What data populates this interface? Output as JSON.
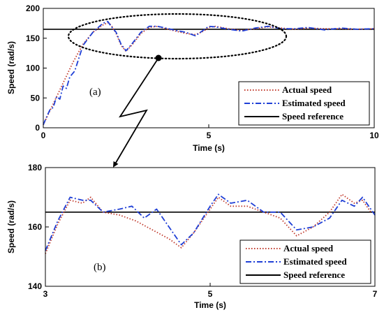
{
  "chart_data": [
    {
      "type": "line",
      "panel_label": "(a)",
      "xlabel": "Time (s)",
      "ylabel": "Speed (rad/s)",
      "xlim": [
        0,
        10
      ],
      "ylim": [
        0,
        200
      ],
      "xticks": [
        "0",
        "5",
        "10"
      ],
      "yticks": [
        "0",
        "50",
        "100",
        "150",
        "200"
      ],
      "grid": false,
      "legend_position": "bottom-right",
      "series": [
        {
          "name": "Actual speed",
          "color": "#c0392b",
          "style": "dotted",
          "x": [
            0,
            0.3,
            0.6,
            0.9,
            1.2,
            1.5,
            1.8,
            1.95,
            2.05,
            2.2,
            2.35,
            2.5,
            2.7,
            2.95,
            3.2,
            3.45,
            3.7,
            4.0,
            4.3,
            4.6,
            4.85,
            5.0,
            5.2,
            5.6,
            6.0,
            6.4,
            6.8,
            7.2,
            7.6,
            8.0,
            8.5,
            9.0,
            9.5,
            10.0
          ],
          "y": [
            5,
            40,
            75,
            110,
            140,
            160,
            172,
            176,
            172,
            158,
            138,
            128,
            140,
            158,
            168,
            170,
            166,
            162,
            158,
            156,
            162,
            168,
            170,
            166,
            163,
            166,
            169,
            167,
            165,
            167,
            166,
            166,
            165,
            166
          ]
        },
        {
          "name": "Estimated speed",
          "color": "#1f3fd6",
          "style": "dashdot",
          "x": [
            0,
            0.1,
            0.2,
            0.3,
            0.4,
            0.5,
            0.6,
            0.7,
            0.8,
            0.95,
            1.2,
            1.5,
            1.8,
            1.95,
            2.05,
            2.2,
            2.35,
            2.5,
            2.7,
            2.95,
            3.2,
            3.45,
            3.7,
            4.0,
            4.3,
            4.6,
            4.85,
            5.0,
            5.2,
            5.6,
            6.0,
            6.4,
            6.8,
            7.2,
            7.6,
            8.0,
            8.5,
            9.0,
            9.5,
            10.0
          ],
          "y": [
            5,
            18,
            30,
            34,
            52,
            48,
            70,
            66,
            85,
            95,
            138,
            160,
            175,
            178,
            170,
            160,
            140,
            129,
            142,
            160,
            170,
            170,
            167,
            163,
            160,
            154,
            164,
            170,
            169,
            165,
            162,
            167,
            170,
            166,
            166,
            168,
            164,
            167,
            165,
            166
          ]
        },
        {
          "name": "Speed reference",
          "color": "#000000",
          "style": "solid",
          "x": [
            0,
            10
          ],
          "y": [
            165,
            165
          ]
        }
      ]
    },
    {
      "type": "line",
      "panel_label": "(b)",
      "xlabel": "Time (s)",
      "ylabel": "Speed (rad/s)",
      "xlim": [
        3,
        7
      ],
      "ylim": [
        140,
        180
      ],
      "xticks": [
        "3",
        "5",
        "7"
      ],
      "yticks": [
        "140",
        "160",
        "180"
      ],
      "grid": false,
      "legend_position": "bottom-right",
      "series": [
        {
          "name": "Actual speed",
          "color": "#c0392b",
          "style": "dotted",
          "x": [
            3.0,
            3.15,
            3.3,
            3.45,
            3.55,
            3.7,
            3.9,
            4.1,
            4.3,
            4.5,
            4.65,
            4.8,
            5.0,
            5.1,
            5.25,
            5.45,
            5.65,
            5.85,
            6.05,
            6.25,
            6.45,
            6.6,
            6.75,
            6.85,
            6.95,
            7.0
          ],
          "y": [
            151,
            161,
            169,
            168,
            170,
            165,
            164,
            162,
            159,
            156,
            153,
            158,
            166,
            170,
            167,
            167,
            165,
            163,
            157,
            160,
            165,
            171,
            168,
            169,
            165,
            165
          ]
        },
        {
          "name": "Estimated speed",
          "color": "#1f3fd6",
          "style": "dashdot",
          "x": [
            3.0,
            3.15,
            3.3,
            3.45,
            3.55,
            3.7,
            3.9,
            4.05,
            4.2,
            4.35,
            4.5,
            4.65,
            4.8,
            5.0,
            5.1,
            5.25,
            5.45,
            5.65,
            5.85,
            6.05,
            6.25,
            6.45,
            6.6,
            6.75,
            6.85,
            6.95,
            7.0
          ],
          "y": [
            152,
            162,
            170,
            169,
            169,
            165,
            166,
            167,
            163,
            166,
            160,
            154,
            158,
            167,
            171,
            168,
            169,
            165,
            165,
            159,
            160,
            163,
            169,
            167,
            170,
            166,
            164
          ]
        },
        {
          "name": "Speed reference",
          "color": "#000000",
          "style": "solid",
          "x": [
            3,
            7
          ],
          "y": [
            165,
            165
          ]
        }
      ]
    }
  ]
}
